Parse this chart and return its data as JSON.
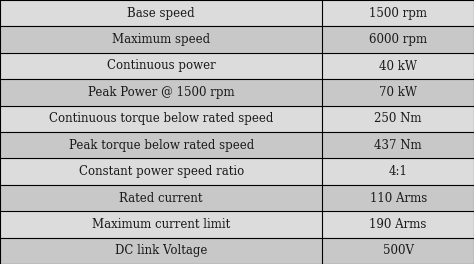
{
  "rows": [
    [
      "Base speed",
      "1500 rpm"
    ],
    [
      "Maximum speed",
      "6000 rpm"
    ],
    [
      "Continuous power",
      "40 kW"
    ],
    [
      "Peak Power @ 1500 rpm",
      "70 kW"
    ],
    [
      "Continuous torque below rated speed",
      "250 Nm"
    ],
    [
      "Peak torque below rated speed",
      "437 Nm"
    ],
    [
      "Constant power speed ratio",
      "4:1"
    ],
    [
      "Rated current",
      "110 Arms"
    ],
    [
      "Maximum current limit",
      "190 Arms"
    ],
    [
      "DC link Voltage",
      "500V"
    ]
  ],
  "col_split": 0.68,
  "row_colors_odd": "#dcdcdc",
  "row_colors_even": "#c8c8c8",
  "border_color": "#000000",
  "text_color": "#1a1a1a",
  "font_size": 8.5,
  "bg_color": "#ffffff"
}
